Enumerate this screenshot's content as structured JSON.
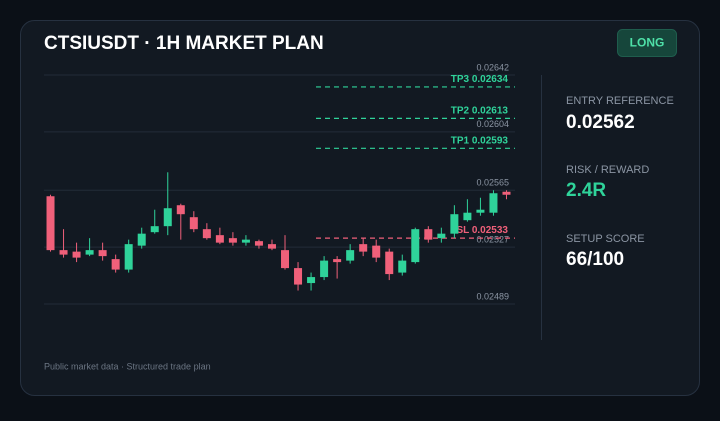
{
  "header": {
    "title": "CTSIUSDT · 1H MARKET PLAN",
    "badge": "LONG"
  },
  "chart_data": {
    "type": "candlestick",
    "open": [
      0.02561,
      0.02525,
      0.02524,
      0.02522,
      0.02525,
      0.02519,
      0.02512,
      0.02528,
      0.02537,
      0.02541,
      0.02555,
      0.02547,
      0.02539,
      0.02535,
      0.02533,
      0.0253,
      0.02531,
      0.02529,
      0.02525,
      0.02513,
      0.02503,
      0.02507,
      0.02519,
      0.02518,
      0.02529,
      0.02528,
      0.02524,
      0.0251,
      0.02517,
      0.02539,
      0.02533,
      0.02536,
      0.02545,
      0.0255,
      0.0255,
      0.02564
    ],
    "high": [
      0.02562,
      0.02539,
      0.0253,
      0.02533,
      0.0253,
      0.02522,
      0.02532,
      0.0254,
      0.02552,
      0.02577,
      0.02556,
      0.02551,
      0.02543,
      0.0254,
      0.02537,
      0.02535,
      0.02532,
      0.02532,
      0.02535,
      0.02517,
      0.0251,
      0.02521,
      0.02521,
      0.02529,
      0.02533,
      0.02532,
      0.02526,
      0.02522,
      0.0254,
      0.02541,
      0.0254,
      0.02555,
      0.02559,
      0.0256,
      0.02565,
      0.02565
    ],
    "low": [
      0.02524,
      0.0252,
      0.02517,
      0.02521,
      0.02518,
      0.0251,
      0.0251,
      0.02526,
      0.02536,
      0.02535,
      0.02532,
      0.02537,
      0.02532,
      0.02529,
      0.02528,
      0.02528,
      0.02526,
      0.02525,
      0.02512,
      0.02498,
      0.02498,
      0.02505,
      0.02506,
      0.02516,
      0.02521,
      0.02517,
      0.02505,
      0.02508,
      0.02516,
      0.0253,
      0.0253,
      0.02533,
      0.02544,
      0.02548,
      0.02548,
      0.02559
    ],
    "close": [
      0.02525,
      0.02522,
      0.0252,
      0.02525,
      0.02521,
      0.02512,
      0.02529,
      0.02536,
      0.02541,
      0.02553,
      0.02549,
      0.02539,
      0.02533,
      0.0253,
      0.0253,
      0.02532,
      0.02528,
      0.02526,
      0.02513,
      0.02502,
      0.02507,
      0.02518,
      0.02517,
      0.02525,
      0.02524,
      0.0252,
      0.02509,
      0.02518,
      0.02539,
      0.02532,
      0.02536,
      0.02549,
      0.0255,
      0.02552,
      0.02563,
      0.02562
    ],
    "up_color": "#2fd39a",
    "down_color": "#f0607a",
    "levels": [
      {
        "name": "TP3",
        "value": 0.02634,
        "color": "#2fd39a"
      },
      {
        "name": "TP2",
        "value": 0.02613,
        "color": "#2fd39a"
      },
      {
        "name": "TP1",
        "value": 0.02593,
        "color": "#2fd39a"
      },
      {
        "name": "SL",
        "value": 0.02533,
        "color": "#f0607a"
      }
    ],
    "ylim": [
      0.02483,
      0.02647
    ],
    "yticks": [
      0.02642,
      0.02604,
      0.02565,
      0.02527,
      0.02489
    ],
    "grid": true
  },
  "stats": [
    {
      "label": "ENTRY REFERENCE",
      "value": "0.02562"
    },
    {
      "label": "RISK / REWARD",
      "value": "2.4R"
    },
    {
      "label": "SETUP SCORE",
      "value": "66/100"
    }
  ],
  "footer": "Public market data · Structured trade plan"
}
